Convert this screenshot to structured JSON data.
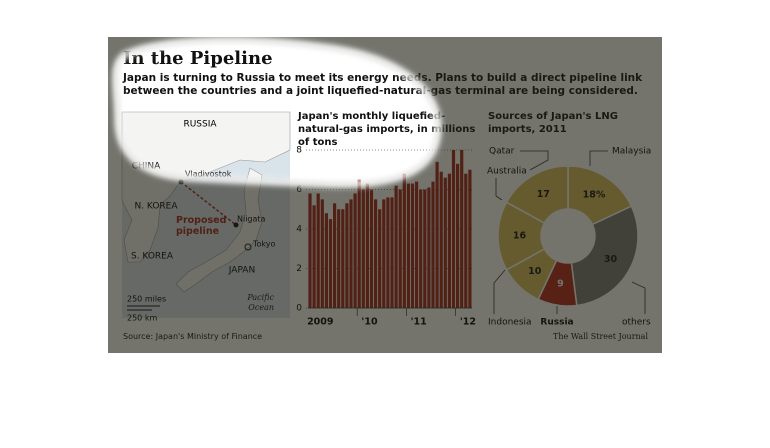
{
  "header": {
    "title": "In the Pipeline",
    "subtitle": "Japan is turning to Russia to meet its energy needs. Plans to build a direct pipeline link between the countries and a joint liquefied-natural-gas terminal are being considered."
  },
  "map": {
    "russia": "RUSSIA",
    "china": "CHINA",
    "vladivostok": "Vladivostok",
    "north_korea": "N. KOREA",
    "south_korea": "S. KOREA",
    "pipeline": "Proposed pipeline",
    "niigata": "Niigata",
    "tokyo": "Tokyo",
    "japan": "JAPAN",
    "ocean": "Pacific Ocean",
    "scale_miles": "250 miles",
    "scale_km": "250 km"
  },
  "chart_data": [
    {
      "type": "bar",
      "title": "Japan's monthly liquefied-natural-gas imports, in millions of tons",
      "categories": [
        "2009",
        null,
        null,
        null,
        null,
        null,
        null,
        null,
        null,
        null,
        null,
        null,
        "'10",
        null,
        null,
        null,
        null,
        null,
        null,
        null,
        null,
        null,
        null,
        null,
        "'11",
        null,
        null,
        null,
        null,
        null,
        null,
        null,
        null,
        null,
        null,
        null,
        "'12",
        null,
        null,
        null
      ],
      "values": [
        5.8,
        5.2,
        5.8,
        5.5,
        4.8,
        4.5,
        5.3,
        5.0,
        5.0,
        5.3,
        5.5,
        5.8,
        6.5,
        6.0,
        6.3,
        6.0,
        5.5,
        5.0,
        5.5,
        5.6,
        5.6,
        6.2,
        6.0,
        6.8,
        6.3,
        6.3,
        6.4,
        6.0,
        6.0,
        6.1,
        6.4,
        7.4,
        6.9,
        6.6,
        6.8,
        8.0,
        7.3,
        8.0,
        6.8,
        7.0
      ],
      "color": "#a3261c",
      "ylim": [
        0,
        8
      ],
      "yticks": [
        0,
        2,
        4,
        6,
        8
      ],
      "grid": true
    },
    {
      "type": "pie",
      "title": "Sources of Japan's LNG imports, 2011",
      "categories": [
        "Malaysia",
        "others",
        "Russia",
        "Indonesia",
        "Australia",
        "Qatar"
      ],
      "values": [
        18,
        30,
        9,
        10,
        16,
        17
      ],
      "value_labels": [
        "18%",
        "30",
        "9",
        "10",
        "16",
        "17"
      ],
      "colors": [
        "#d8bd5e",
        "#7a7a78",
        "#b3261c",
        "#d8bd5e",
        "#d8bd5e",
        "#d8bd5e"
      ]
    }
  ],
  "footer": {
    "source": "Source: Japan's Ministry of Finance",
    "credit": "The Wall Street Journal"
  }
}
